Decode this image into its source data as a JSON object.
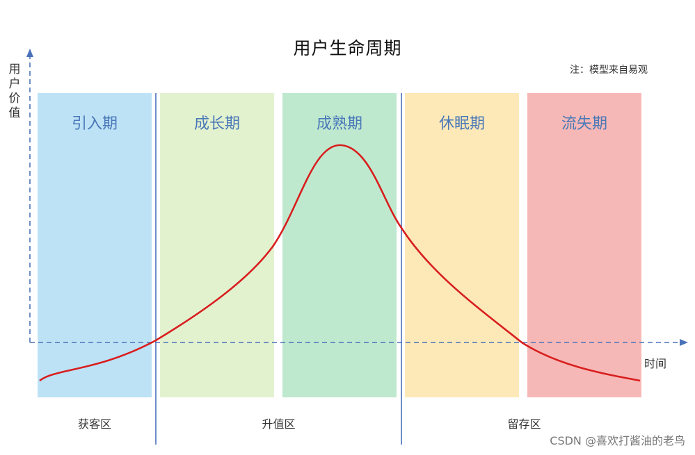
{
  "title": "用户生命周期",
  "note": "注：模型来自易观",
  "y_axis_label": "用户价值",
  "x_axis_label": "时间",
  "phases": [
    {
      "label": "引入期",
      "color": "#bde2f6"
    },
    {
      "label": "成长期",
      "color": "#e2f2cf"
    },
    {
      "label": "成熟期",
      "color": "#bfe9cf"
    },
    {
      "label": "休眠期",
      "color": "#fde9b8"
    },
    {
      "label": "流失期",
      "color": "#f6b8b6"
    }
  ],
  "zones": [
    {
      "label": "获客区"
    },
    {
      "label": "升值区"
    },
    {
      "label": "留存区"
    }
  ],
  "colors": {
    "axis": "#4a72b8",
    "curve": "#d81e1e",
    "phase_text": "#4a78b8"
  },
  "watermark": "CSDN @喜欢打酱油的老鸟"
}
